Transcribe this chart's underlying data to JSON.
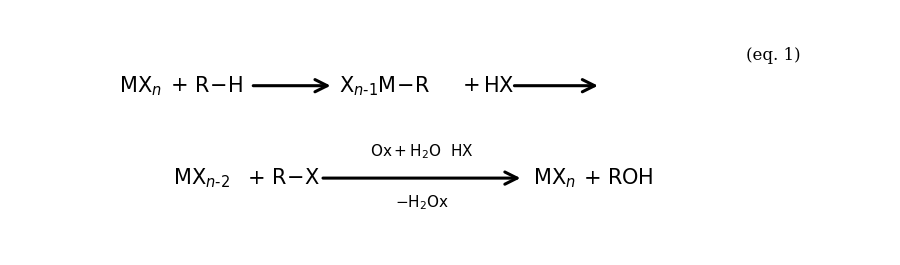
{
  "bg_color": "#ffffff",
  "eq1_label": "(eq. 1)",
  "font_main": 15,
  "font_sub": 11,
  "font_label": 12
}
